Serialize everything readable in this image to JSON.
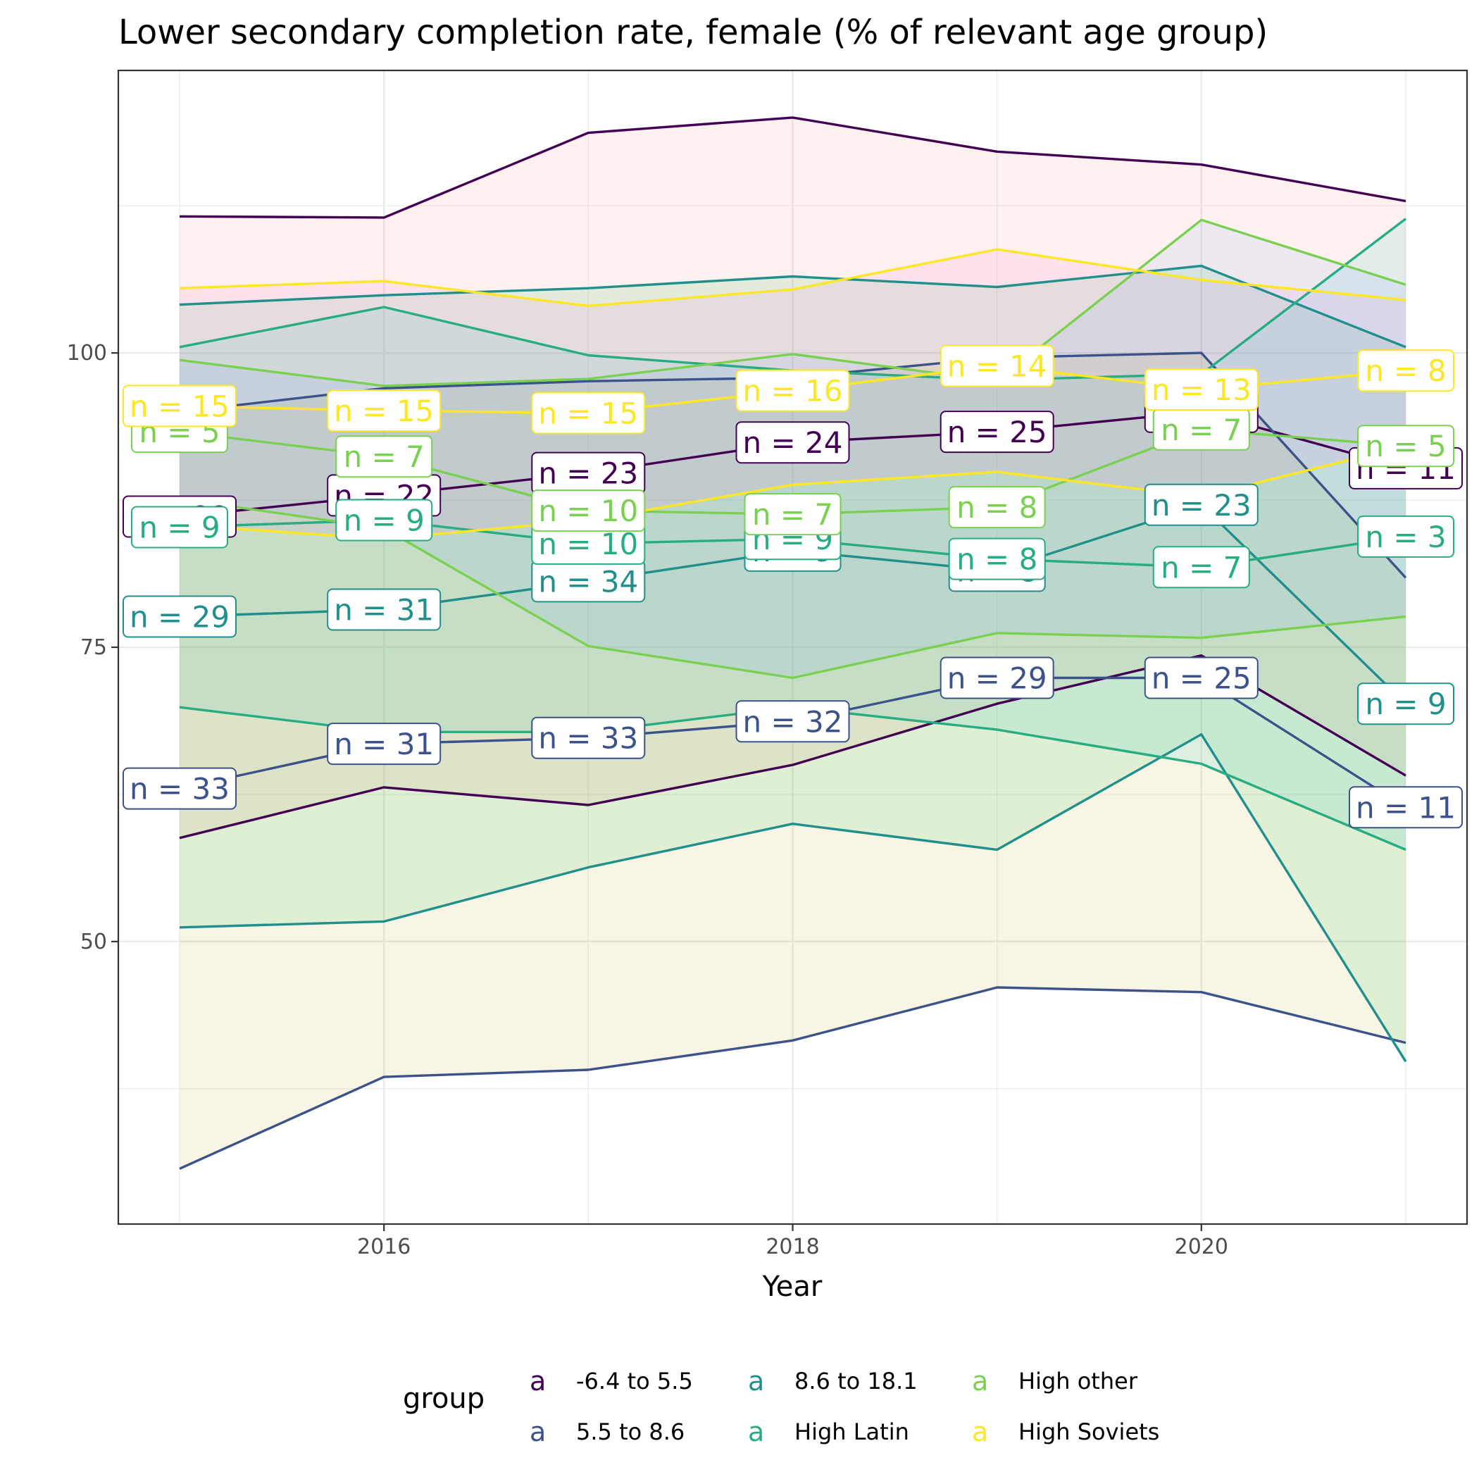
{
  "chart_data": {
    "type": "line",
    "title": "Lower secondary completion rate, female (% of relevant age group)",
    "xlabel": "Year",
    "ylabel": "",
    "x": [
      2015,
      2016,
      2017,
      2018,
      2019,
      2020,
      2021
    ],
    "xlim": [
      2014.7,
      2021.3
    ],
    "ylim": [
      26,
      124
    ],
    "x_ticks": [
      2016,
      2018,
      2020
    ],
    "y_ticks": [
      50,
      75,
      100
    ],
    "grid": true,
    "legend": {
      "title": "group",
      "position": "bottom",
      "key_glyph": "a"
    },
    "series": [
      {
        "name": "-6.4 to 5.5",
        "color": "#440154",
        "mean": [
          86.1,
          87.9,
          89.8,
          92.4,
          93.3,
          95.0,
          90.2
        ],
        "upper": [
          111.6,
          111.5,
          118.7,
          120.0,
          117.1,
          116.0,
          112.9
        ],
        "lower": [
          58.8,
          63.1,
          61.6,
          65.0,
          70.2,
          74.3,
          64.1
        ],
        "n": [
          22,
          22,
          23,
          24,
          25,
          24,
          11
        ]
      },
      {
        "name": "5.5 to 8.6",
        "color": "#3B528B",
        "mean": [
          63.0,
          66.8,
          67.3,
          68.7,
          72.4,
          72.4,
          61.4
        ],
        "upper": [
          95.0,
          97.0,
          97.6,
          97.9,
          99.6,
          100.0,
          80.9
        ],
        "lower": [
          30.7,
          38.5,
          39.1,
          41.6,
          46.1,
          45.7,
          41.4
        ],
        "n": [
          33,
          31,
          33,
          32,
          29,
          25,
          11
        ]
      },
      {
        "name": "8.6 to 18.1",
        "color": "#21908C",
        "mean": [
          77.6,
          78.2,
          80.6,
          83.2,
          81.5,
          87.1,
          70.2
        ],
        "upper": [
          104.1,
          104.9,
          105.5,
          106.5,
          105.6,
          107.4,
          100.5
        ],
        "lower": [
          51.2,
          51.7,
          56.3,
          60.0,
          57.8,
          67.6,
          39.8
        ],
        "n": [
          29,
          31,
          34,
          9,
          8,
          23,
          9
        ]
      },
      {
        "name": "High Latin",
        "color": "#27AD81",
        "mean": [
          85.2,
          85.8,
          83.8,
          84.2,
          82.5,
          81.8,
          84.4
        ],
        "upper": [
          100.5,
          103.9,
          99.8,
          98.5,
          97.7,
          98.2,
          111.4
        ],
        "lower": [
          69.9,
          67.8,
          67.8,
          69.9,
          68.0,
          65.1,
          57.8
        ],
        "n": [
          9,
          9,
          10,
          9,
          8,
          7,
          3
        ]
      },
      {
        "name": "High other",
        "color": "#7AD151",
        "mean": [
          93.3,
          91.2,
          86.6,
          86.3,
          86.9,
          93.5,
          92.1
        ],
        "upper": [
          99.4,
          97.2,
          97.8,
          99.9,
          97.6,
          111.3,
          105.8
        ],
        "lower": [
          87.6,
          85.1,
          75.1,
          72.4,
          76.2,
          75.8,
          77.6
        ],
        "n": [
          5,
          7,
          10,
          7,
          8,
          7,
          5
        ]
      },
      {
        "name": "High Soviets",
        "color": "#FDE725",
        "mean": [
          95.5,
          95.1,
          94.9,
          96.8,
          98.9,
          96.9,
          98.5
        ],
        "upper": [
          105.5,
          106.1,
          104.0,
          105.4,
          108.8,
          106.2,
          104.5
        ],
        "lower": [
          85.4,
          84.2,
          85.8,
          88.8,
          89.9,
          87.8,
          92.1
        ],
        "n": [
          15,
          15,
          15,
          16,
          14,
          13,
          8
        ]
      }
    ]
  }
}
